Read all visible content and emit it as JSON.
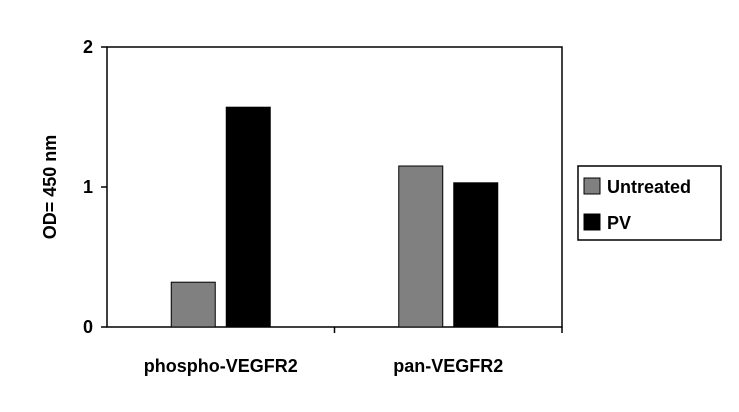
{
  "chart_data": {
    "type": "bar",
    "title": "",
    "xlabel": "",
    "ylabel": "OD= 450 nm",
    "ylim": [
      0,
      2
    ],
    "yticks": [
      "0",
      "1",
      "2"
    ],
    "grid": false,
    "legend_position": "right",
    "categories": [
      "phospho-VEGFR2",
      "pan-VEGFR2"
    ],
    "series": [
      {
        "name": "Untreated",
        "color": "#808080",
        "values": [
          0.32,
          1.15
        ]
      },
      {
        "name": "PV",
        "color": "#000000",
        "values": [
          1.57,
          1.03
        ]
      }
    ]
  }
}
